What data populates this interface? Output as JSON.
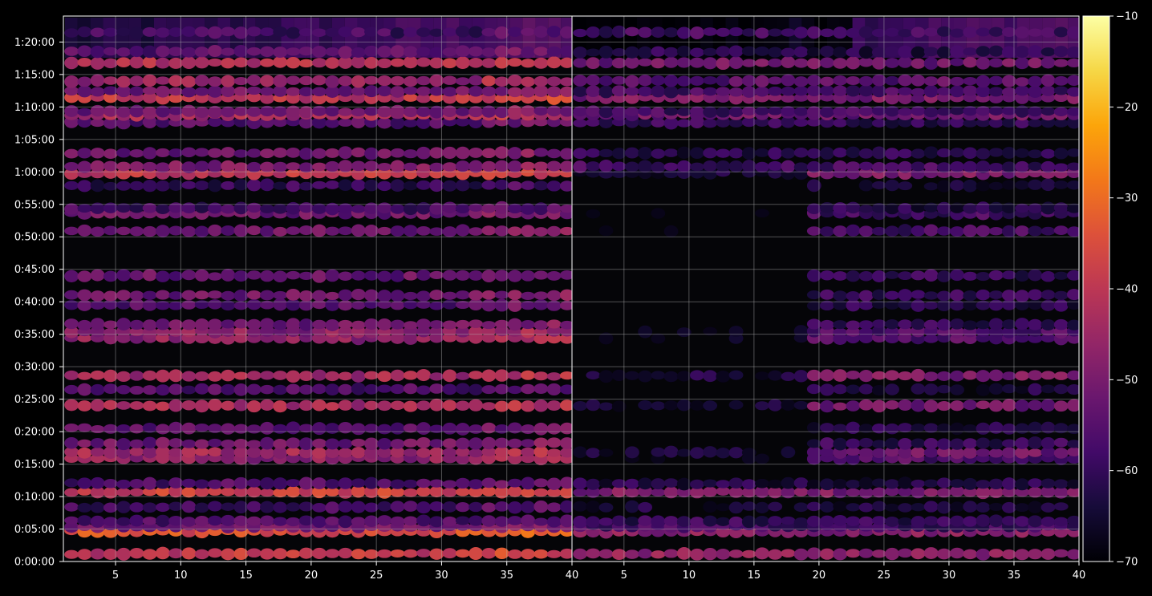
{
  "chart_data": {
    "type": "heatmap",
    "title": "",
    "xlabel": "",
    "ylabel": "",
    "panels": [
      {
        "name": "",
        "xlim": [
          1,
          40
        ],
        "x_ticks": [
          5,
          10,
          15,
          20,
          25,
          30,
          35,
          40
        ],
        "coverage": "full"
      },
      {
        "name": "",
        "xlim": [
          1,
          40
        ],
        "x_ticks": [
          5,
          10,
          15,
          20,
          25,
          30,
          35,
          40
        ],
        "coverage": "partial"
      }
    ],
    "y_ticks": [
      "0:00:00",
      "0:05:00",
      "0:10:00",
      "0:15:00",
      "0:20:00",
      "0:25:00",
      "0:30:00",
      "0:35:00",
      "0:40:00",
      "0:45:00",
      "0:50:00",
      "0:55:00",
      "1:00:00",
      "1:05:00",
      "1:10:00",
      "1:15:00",
      "1:20:00"
    ],
    "ylim_minutes": [
      0,
      84
    ],
    "colorbar": {
      "colormap": "inferno",
      "range": [
        -70,
        -10
      ],
      "ticks": [
        "−10",
        "−20",
        "−30",
        "−40",
        "−50",
        "−60",
        "−70"
      ],
      "tick_values": [
        -10,
        -20,
        -30,
        -40,
        -50,
        -60,
        -70
      ]
    },
    "bands": [
      {
        "t_min": 1.2,
        "level": -40,
        "right_level": -47
      },
      {
        "t_min": 4.6,
        "level": -35,
        "right_level": -48
      },
      {
        "t_min": 5.4,
        "level": -52,
        "right_level": -58
      },
      {
        "t_min": 6.2,
        "level": -56,
        "right_level": -60
      },
      {
        "t_min": 8.4,
        "level": -58,
        "right_level": -64
      },
      {
        "t_min": 10.7,
        "level": -38,
        "right_level": -50
      },
      {
        "t_min": 12.0,
        "level": -56,
        "right_level": -63
      },
      {
        "t_min": 15.9,
        "level": -47,
        "right_level": -56
      },
      {
        "t_min": 16.8,
        "level": -45,
        "right_level": -52
      },
      {
        "t_min": 18.2,
        "level": -52,
        "right_level": -60
      },
      {
        "t_min": 20.5,
        "level": -55,
        "right_level": -63
      },
      {
        "t_min": 24.0,
        "level": -44,
        "right_level": -52
      },
      {
        "t_min": 26.5,
        "level": -56,
        "right_level": -64
      },
      {
        "t_min": 28.6,
        "level": -44,
        "right_level": -50
      },
      {
        "t_min": 34.4,
        "level": -47,
        "right_level": -55
      },
      {
        "t_min": 35.4,
        "level": -48,
        "right_level": -56
      },
      {
        "t_min": 36.5,
        "level": -52,
        "right_level": -60
      },
      {
        "t_min": 39.5,
        "level": -55,
        "right_level": -62
      },
      {
        "t_min": 41.0,
        "level": -52,
        "right_level": -60
      },
      {
        "t_min": 44.0,
        "level": -53,
        "right_level": -60
      },
      {
        "t_min": 50.9,
        "level": -52,
        "right_level": -58
      },
      {
        "t_min": 53.6,
        "level": -52,
        "right_level": -58
      },
      {
        "t_min": 54.4,
        "level": -58,
        "right_level": -62
      },
      {
        "t_min": 57.9,
        "level": -60,
        "right_level": -66
      },
      {
        "t_min": 59.8,
        "level": -40,
        "right_level": -50
      },
      {
        "t_min": 60.8,
        "level": -50,
        "right_level": -58
      },
      {
        "t_min": 62.9,
        "level": -52,
        "right_level": -62
      },
      {
        "t_min": 67.6,
        "level": -55,
        "right_level": -60
      },
      {
        "t_min": 68.8,
        "level": -44,
        "right_level": -52
      },
      {
        "t_min": 69.3,
        "level": -52,
        "right_level": -58
      },
      {
        "t_min": 71.4,
        "level": -40,
        "right_level": -50
      },
      {
        "t_min": 72.4,
        "level": -52,
        "right_level": -58
      },
      {
        "t_min": 74.0,
        "level": -46,
        "right_level": -55
      },
      {
        "t_min": 76.8,
        "level": -42,
        "right_level": -52
      },
      {
        "t_min": 78.5,
        "level": -55,
        "right_level": -62
      },
      {
        "t_min": 81.5,
        "level": -58,
        "right_level": -58
      }
    ]
  }
}
